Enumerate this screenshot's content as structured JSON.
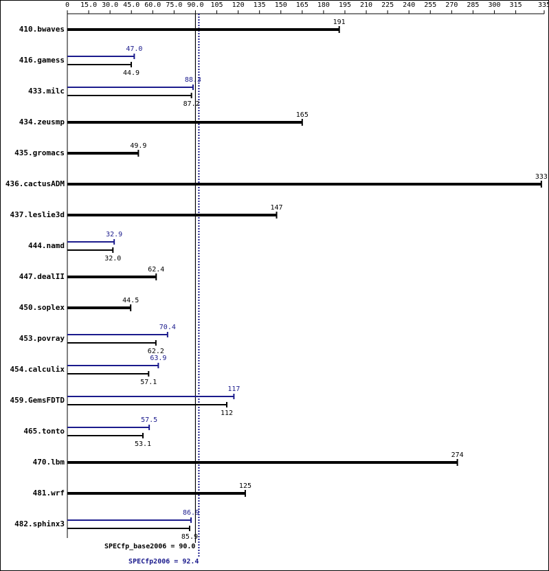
{
  "chart_data": {
    "type": "bar",
    "categories": [
      "410.bwaves",
      "416.gamess",
      "433.milc",
      "434.zeusmp",
      "435.gromacs",
      "436.cactusADM",
      "437.leslie3d",
      "444.namd",
      "447.dealII",
      "450.soplex",
      "453.povray",
      "454.calculix",
      "459.GemsFDTD",
      "465.tonto",
      "470.lbm",
      "481.wrf",
      "482.sphinx3"
    ],
    "series": [
      {
        "color": "#000000",
        "values": [
          191,
          44.9,
          87.2,
          165,
          49.9,
          333,
          147,
          32.0,
          62.4,
          44.5,
          62.2,
          57.1,
          112,
          53.1,
          274,
          125,
          85.9
        ],
        "value_labels": [
          "191",
          "44.9",
          "87.2",
          "165",
          "49.9",
          "333",
          "147",
          "32.0",
          "62.4",
          "44.5",
          "62.2",
          "57.1",
          "112",
          "53.1",
          "274",
          "125",
          "85.9"
        ]
      },
      {
        "color": "#1a1a8c",
        "values": [
          null,
          47.0,
          88.3,
          null,
          null,
          null,
          null,
          32.9,
          null,
          null,
          70.4,
          63.9,
          117,
          57.5,
          null,
          null,
          86.9
        ],
        "value_labels": [
          null,
          "47.0",
          "88.3",
          null,
          null,
          null,
          null,
          "32.9",
          null,
          null,
          "70.4",
          "63.9",
          "117",
          "57.5",
          null,
          null,
          "86.9"
        ]
      }
    ],
    "xlim": [
      0,
      335
    ],
    "xticks": [
      0,
      {
        "value": 15,
        "label": "15.0"
      },
      {
        "value": 30,
        "label": "30.0"
      },
      {
        "value": 45,
        "label": "45.0"
      },
      {
        "value": 60,
        "label": "60.0"
      },
      {
        "value": 75,
        "label": "75.0"
      },
      {
        "value": 90,
        "label": "90.0"
      },
      105,
      120,
      135,
      150,
      165,
      180,
      195,
      210,
      225,
      240,
      255,
      270,
      285,
      300,
      315,
      335
    ],
    "reference_lines": [
      {
        "label": "SPECfp_base2006 = 90.0",
        "value": 90.0,
        "color": "#000000"
      },
      {
        "label": "SPECfp2006 = 92.4",
        "value": 92.4,
        "color": "#1a1a8c"
      }
    ]
  }
}
